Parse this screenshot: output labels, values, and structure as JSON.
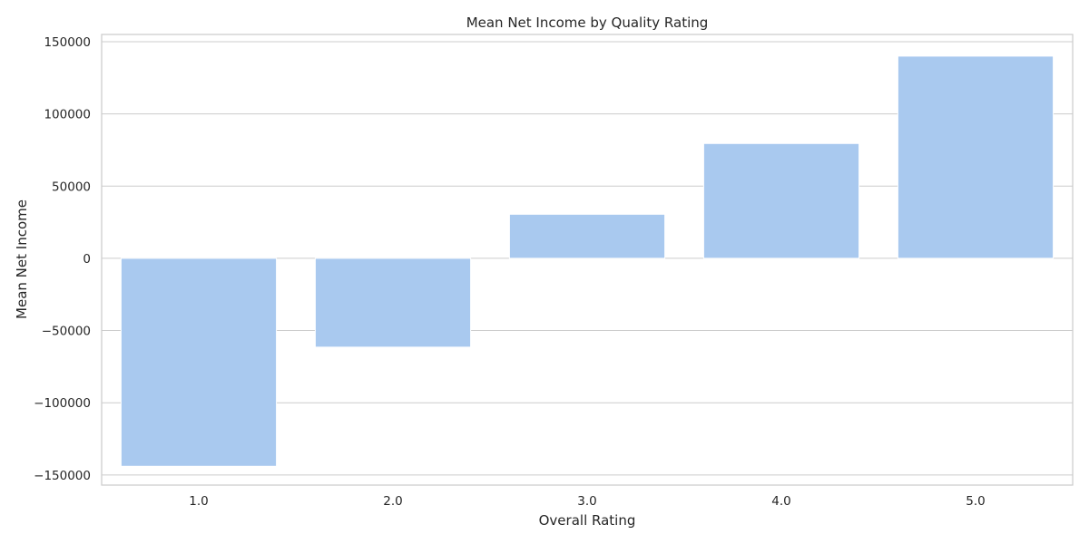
{
  "chart_data": {
    "type": "bar",
    "title": "Mean Net Income by Quality Rating",
    "xlabel": "Overall Rating",
    "ylabel": "Mean Net Income",
    "categories": [
      "1.0",
      "2.0",
      "3.0",
      "4.0",
      "5.0"
    ],
    "values": [
      -144000,
      -61500,
      30500,
      79500,
      140000
    ],
    "ylim": [
      -157000,
      155000
    ],
    "yticks": [
      -150000,
      -100000,
      -50000,
      0,
      50000,
      100000,
      150000
    ],
    "ytick_labels": [
      "−150000",
      "−100000",
      "−50000",
      "0",
      "50000",
      "100000",
      "150000"
    ],
    "grid": true,
    "bar_color": "#a9c9ef",
    "grid_color": "#cccccc",
    "axis_color": "#cccccc"
  }
}
